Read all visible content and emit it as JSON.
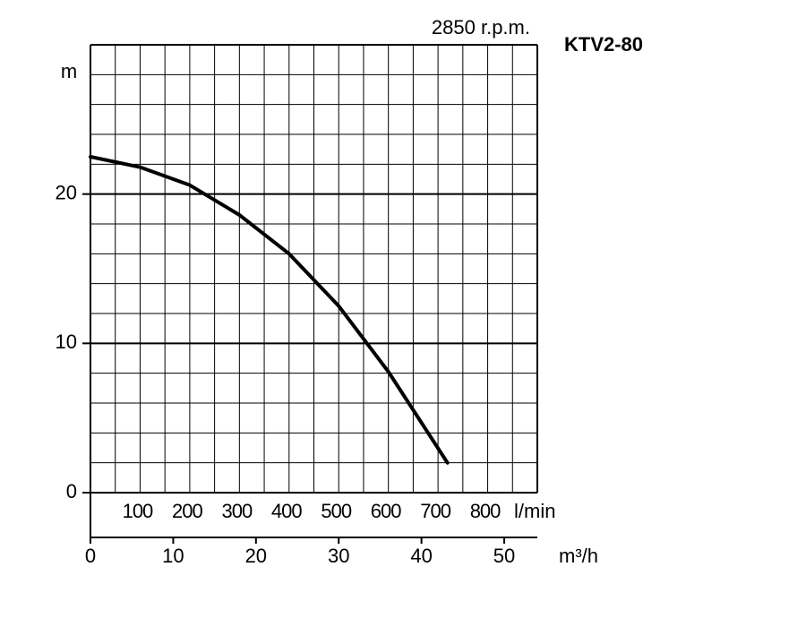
{
  "chart_data": {
    "type": "line",
    "title": "KTV2-80",
    "subtitle": "2850 r.p.m.",
    "y_label": "m",
    "x_label": "l/min",
    "x2_label": "m³/h",
    "x": [
      0,
      100,
      200,
      300,
      400,
      500,
      600,
      719
    ],
    "series": [
      {
        "name": "KTV2-80",
        "color": "#000000",
        "values": [
          22.5,
          21.8,
          20.6,
          18.6,
          16.0,
          12.5,
          8.1,
          2.0
        ]
      }
    ],
    "xlim": [
      0,
      900
    ],
    "xticks": [
      100,
      200,
      300,
      400,
      500,
      600,
      700,
      800
    ],
    "x2lim": [
      0,
      54
    ],
    "x2ticks": [
      0,
      10,
      20,
      30,
      40,
      50
    ],
    "ylim": [
      0,
      30
    ],
    "yticks": [
      0,
      10,
      20
    ],
    "xgrid": [
      0,
      50,
      100,
      150,
      200,
      250,
      300,
      350,
      400,
      450,
      500,
      550,
      600,
      650,
      700,
      750,
      800,
      850,
      900
    ],
    "ygrid": [
      0,
      2,
      4,
      6,
      8,
      10,
      12,
      14,
      16,
      18,
      20,
      22,
      24,
      26,
      28,
      30
    ],
    "grid": true
  }
}
